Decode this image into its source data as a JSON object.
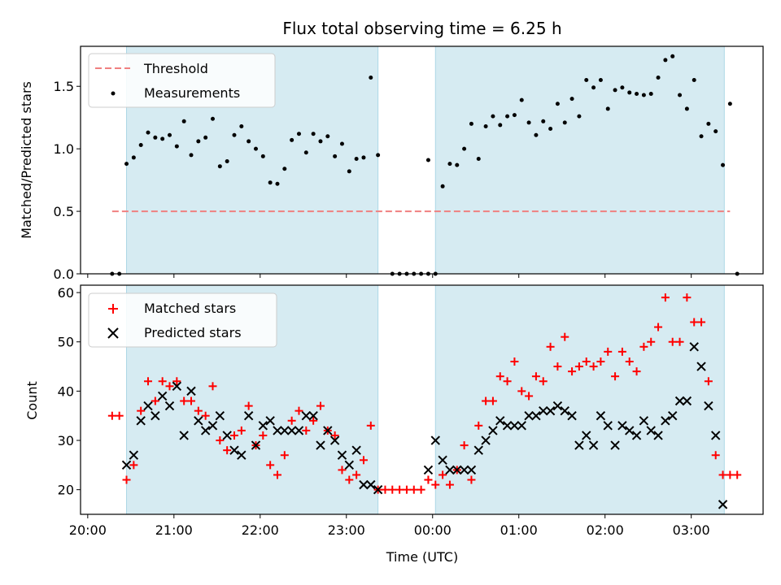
{
  "chart_data": [
    {
      "type": "scatter",
      "title": "Flux total observing time = 6.25 h",
      "xlabel": "",
      "ylabel": "Matched/Predicted stars",
      "xlim": [
        "19:55",
        "03:50"
      ],
      "ylim": [
        0,
        1.82
      ],
      "yticks": [
        0.0,
        0.5,
        1.0,
        1.5
      ],
      "ytick_labels": [
        "0.0",
        "0.5",
        "1.0",
        "1.5"
      ],
      "legend_position": "top-left",
      "shaded_intervals": [
        [
          "20:27",
          "23:22"
        ],
        [
          "00:02",
          "03:23"
        ]
      ],
      "threshold": {
        "name": "Threshold",
        "value": 0.5,
        "x_range": [
          "20:17",
          "03:27"
        ],
        "color": "#f08080"
      },
      "series": [
        {
          "name": "Measurements",
          "color": "#000000",
          "x": [
            "20:17",
            "20:22",
            "20:27",
            "20:32",
            "20:37",
            "20:42",
            "20:47",
            "20:52",
            "20:57",
            "21:02",
            "21:07",
            "21:12",
            "21:17",
            "21:22",
            "21:27",
            "21:32",
            "21:37",
            "21:42",
            "21:47",
            "21:52",
            "21:57",
            "22:02",
            "22:07",
            "22:12",
            "22:17",
            "22:22",
            "22:27",
            "22:32",
            "22:37",
            "22:42",
            "22:47",
            "22:52",
            "22:57",
            "23:02",
            "23:07",
            "23:12",
            "23:17",
            "23:22",
            "23:32",
            "23:37",
            "23:42",
            "23:47",
            "23:52",
            "23:57",
            "23:57",
            "00:02",
            "00:07",
            "00:12",
            "00:17",
            "00:22",
            "00:27",
            "00:32",
            "00:37",
            "00:42",
            "00:47",
            "00:52",
            "00:57",
            "01:02",
            "01:07",
            "01:12",
            "01:17",
            "01:22",
            "01:27",
            "01:32",
            "01:37",
            "01:42",
            "01:47",
            "01:52",
            "01:57",
            "02:02",
            "02:07",
            "02:12",
            "02:17",
            "02:22",
            "02:27",
            "02:32",
            "02:37",
            "02:42",
            "02:47",
            "02:52",
            "02:57",
            "03:02",
            "03:07",
            "03:12",
            "03:17",
            "03:22",
            "03:27",
            "03:32"
          ],
          "y": [
            0.0,
            0.0,
            0.88,
            0.93,
            1.03,
            1.13,
            1.09,
            1.08,
            1.11,
            1.02,
            1.22,
            0.95,
            1.06,
            1.09,
            1.24,
            0.86,
            0.9,
            1.11,
            1.18,
            1.06,
            1.0,
            0.94,
            0.73,
            0.72,
            0.84,
            1.07,
            1.12,
            0.97,
            1.12,
            1.06,
            1.1,
            0.94,
            1.04,
            0.82,
            0.92,
            0.93,
            1.57,
            0.95,
            0.0,
            0.0,
            0.0,
            0.0,
            0.0,
            0.0,
            0.91,
            0.0,
            0.7,
            0.88,
            0.87,
            1.0,
            1.2,
            0.92,
            1.18,
            1.26,
            1.19,
            1.26,
            1.27,
            1.39,
            1.21,
            1.11,
            1.22,
            1.16,
            1.36,
            1.21,
            1.4,
            1.26,
            1.55,
            1.49,
            1.55,
            1.32,
            1.47,
            1.49,
            1.45,
            1.44,
            1.43,
            1.44,
            1.57,
            1.71,
            1.74,
            1.43,
            1.32,
            1.55,
            1.1,
            1.2,
            1.14,
            0.87,
            1.36,
            0.0
          ]
        }
      ]
    },
    {
      "type": "scatter",
      "title": "",
      "xlabel": "Time (UTC)",
      "ylabel": "Count",
      "xlim": [
        "19:55",
        "03:50"
      ],
      "ylim": [
        15,
        61.5
      ],
      "xticks": [
        "20:00",
        "21:00",
        "22:00",
        "23:00",
        "00:00",
        "01:00",
        "02:00",
        "03:00"
      ],
      "yticks": [
        20,
        30,
        40,
        50,
        60
      ],
      "ytick_labels": [
        "20",
        "30",
        "40",
        "50",
        "60"
      ],
      "legend_position": "top-left",
      "shaded_intervals": [
        [
          "20:27",
          "23:22"
        ],
        [
          "00:02",
          "03:23"
        ]
      ],
      "series": [
        {
          "name": "Matched stars",
          "marker": "plus",
          "color": "#ff0000",
          "x": [
            "20:17",
            "20:22",
            "20:27",
            "20:32",
            "20:37",
            "20:42",
            "20:47",
            "20:52",
            "20:57",
            "21:02",
            "21:07",
            "21:12",
            "21:17",
            "21:22",
            "21:27",
            "21:32",
            "21:37",
            "21:42",
            "21:47",
            "21:52",
            "21:57",
            "22:02",
            "22:07",
            "22:12",
            "22:17",
            "22:22",
            "22:27",
            "22:32",
            "22:37",
            "22:42",
            "22:47",
            "22:52",
            "22:57",
            "23:02",
            "23:07",
            "23:12",
            "23:17",
            "23:22",
            "23:27",
            "23:32",
            "23:37",
            "23:42",
            "23:47",
            "23:52",
            "23:57",
            "23:57",
            "00:02",
            "00:07",
            "00:12",
            "00:17",
            "00:22",
            "00:27",
            "00:32",
            "00:37",
            "00:42",
            "00:47",
            "00:52",
            "00:57",
            "01:02",
            "01:07",
            "01:12",
            "01:17",
            "01:22",
            "01:27",
            "01:32",
            "01:37",
            "01:42",
            "01:47",
            "01:52",
            "01:57",
            "02:02",
            "02:07",
            "02:12",
            "02:17",
            "02:22",
            "02:27",
            "02:32",
            "02:37",
            "02:42",
            "02:47",
            "02:52",
            "02:57",
            "03:02",
            "03:07",
            "03:12",
            "03:17",
            "03:22",
            "03:27",
            "03:32"
          ],
          "y": [
            35,
            35,
            22,
            25,
            36,
            42,
            38,
            42,
            41,
            42,
            38,
            38,
            36,
            35,
            41,
            30,
            28,
            31,
            32,
            37,
            29,
            31,
            25,
            23,
            27,
            34,
            36,
            32,
            34,
            37,
            32,
            31,
            24,
            22,
            23,
            26,
            33,
            20,
            20,
            20,
            20,
            20,
            20,
            20,
            22,
            22,
            21,
            23,
            21,
            24,
            29,
            22,
            33,
            38,
            38,
            43,
            42,
            46,
            40,
            39,
            43,
            42,
            49,
            45,
            51,
            44,
            45,
            46,
            45,
            46,
            48,
            43,
            48,
            46,
            44,
            49,
            50,
            53,
            59,
            50,
            50,
            59,
            54,
            54,
            42,
            27,
            23,
            23,
            23
          ],
          "note": ""
        },
        {
          "name": "Predicted stars",
          "marker": "x",
          "color": "#000000",
          "x": [
            "20:27",
            "20:32",
            "20:37",
            "20:42",
            "20:47",
            "20:52",
            "20:57",
            "21:02",
            "21:07",
            "21:12",
            "21:17",
            "21:22",
            "21:27",
            "21:32",
            "21:37",
            "21:42",
            "21:47",
            "21:52",
            "21:57",
            "22:02",
            "22:07",
            "22:12",
            "22:17",
            "22:22",
            "22:27",
            "22:32",
            "22:37",
            "22:42",
            "22:47",
            "22:52",
            "22:57",
            "23:02",
            "23:07",
            "23:12",
            "23:17",
            "23:22",
            "23:57",
            "00:02",
            "00:07",
            "00:12",
            "00:17",
            "00:22",
            "00:27",
            "00:32",
            "00:37",
            "00:42",
            "00:47",
            "00:52",
            "00:57",
            "01:02",
            "01:07",
            "01:12",
            "01:17",
            "01:22",
            "01:27",
            "01:32",
            "01:37",
            "01:42",
            "01:47",
            "01:52",
            "01:57",
            "02:02",
            "02:07",
            "02:12",
            "02:17",
            "02:22",
            "02:27",
            "02:32",
            "02:37",
            "02:42",
            "02:47",
            "02:52",
            "02:57",
            "03:02",
            "03:07",
            "03:12",
            "03:17",
            "03:22"
          ],
          "y": [
            25,
            27,
            34,
            37,
            35,
            39,
            37,
            41,
            31,
            40,
            34,
            32,
            33,
            35,
            31,
            28,
            27,
            35,
            29,
            33,
            34,
            32,
            32,
            32,
            32,
            35,
            35,
            29,
            32,
            30,
            27,
            25,
            28,
            21,
            21,
            20,
            24,
            30,
            26,
            24,
            24,
            24,
            24,
            28,
            30,
            32,
            34,
            33,
            33,
            33,
            35,
            35,
            36,
            36,
            37,
            36,
            35,
            29,
            31,
            29,
            35,
            33,
            29,
            33,
            32,
            31,
            34,
            32,
            31,
            34,
            35,
            38,
            38,
            49,
            45,
            37,
            31,
            17
          ],
          "note": ""
        }
      ]
    }
  ]
}
